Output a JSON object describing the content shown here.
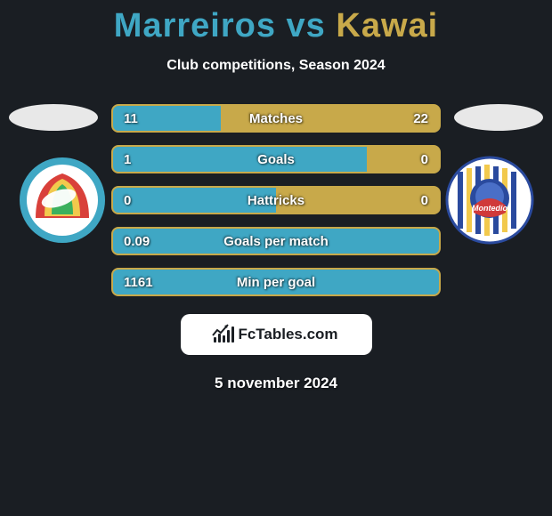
{
  "title": {
    "player1": "Marreiros",
    "vs": "vs",
    "player2": "Kawai",
    "color1": "#3fa7c4",
    "color2": "#c8a94a"
  },
  "subtitle": "Club competitions, Season 2024",
  "bars": {
    "border_color": "#c8a94a",
    "fill_color": "#3fa7c4",
    "text_shadow": "1px 1px 2px rgba(0,0,0,.7)",
    "rows": [
      {
        "label": "Matches",
        "left": "11",
        "right": "22",
        "fill_pct": 33
      },
      {
        "label": "Goals",
        "left": "1",
        "right": "0",
        "fill_pct": 78
      },
      {
        "label": "Hattricks",
        "left": "0",
        "right": "0",
        "fill_pct": 50
      },
      {
        "label": "Goals per match",
        "left": "0.09",
        "right": "",
        "fill_pct": 100
      },
      {
        "label": "Min per goal",
        "left": "1161",
        "right": "",
        "fill_pct": 100
      }
    ]
  },
  "badge_left": {
    "bg": "#3fa7c4",
    "stripes": [
      "#d9403a",
      "#f2c94c",
      "#3bb05e"
    ]
  },
  "badge_right": {
    "bg": "#ffffff",
    "stripes": [
      "#2a4a9e",
      "#f2c94c",
      "#2a4a9e"
    ],
    "inner_text": "Montedio",
    "inner_text_color": "#d03a3a"
  },
  "brand": "FcTables.com",
  "date": "5 november 2024",
  "avatar_placeholder_bg": "#e8e8e8"
}
